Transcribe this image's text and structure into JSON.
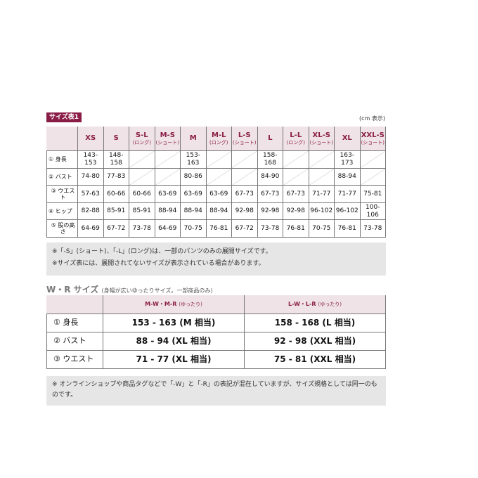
{
  "size_table_1": {
    "badge": "サイズ表1",
    "unit_note": "(cm 表示)",
    "columns": [
      {
        "main": "XS"
      },
      {
        "main": "S"
      },
      {
        "main": "S-L",
        "sub": "(ロング)"
      },
      {
        "main": "M-S",
        "sub": "(ショート)"
      },
      {
        "main": "M"
      },
      {
        "main": "M-L",
        "sub": "(ロング)"
      },
      {
        "main": "L-S",
        "sub": "(ショート)"
      },
      {
        "main": "L"
      },
      {
        "main": "L-L",
        "sub": "(ロング)"
      },
      {
        "main": "XL-S",
        "sub": "(ショート)"
      },
      {
        "main": "XL"
      },
      {
        "main": "XXL-S",
        "sub": "(ショート)"
      }
    ],
    "rows": [
      {
        "label": "① 身長",
        "cells": [
          "143-153",
          "148-158",
          null,
          null,
          "153-163",
          null,
          null,
          "158-168",
          null,
          null,
          "163-173",
          null
        ]
      },
      {
        "label": "② バスト",
        "cells": [
          "74-80",
          "77-83",
          null,
          null,
          "80-86",
          null,
          null,
          "84-90",
          null,
          null,
          "88-94",
          null
        ]
      },
      {
        "label": "③ ウエスト",
        "cells": [
          "57-63",
          "60-66",
          "60-66",
          "63-69",
          "63-69",
          "63-69",
          "67-73",
          "67-73",
          "67-73",
          "71-77",
          "71-77",
          "75-81"
        ]
      },
      {
        "label": "④ ヒップ",
        "cells": [
          "82-88",
          "85-91",
          "85-91",
          "88-94",
          "88-94",
          "88-94",
          "92-98",
          "92-98",
          "92-98",
          "96-102",
          "96-102",
          "100-106"
        ]
      },
      {
        "label": "⑤ 股の高さ",
        "cells": [
          "64-69",
          "67-72",
          "73-78",
          "64-69",
          "70-75",
          "76-81",
          "67-72",
          "73-78",
          "76-81",
          "70-75",
          "76-81",
          "73-78"
        ]
      }
    ],
    "notes": [
      "※「-S」(ショート)、「-L」(ロング)は、一部のパンツのみの展開サイズです。",
      "※サイズ表には、展開されてないサイズが表示されている場合があります。"
    ]
  },
  "wr_table": {
    "title": "W・R サイズ",
    "subtitle": "(身幅が広いゆったりサイズ。一部商品のみ)",
    "columns": [
      {
        "main": "M-W・M-R",
        "sub": "(ゆったり)"
      },
      {
        "main": "L-W・L-R",
        "sub": "(ゆったり)"
      }
    ],
    "rows": [
      {
        "label": "① 身長",
        "cells": [
          "153 - 163 (M 相当)",
          "158 - 168 (L 相当)"
        ]
      },
      {
        "label": "② バスト",
        "cells": [
          "88 - 94 (XL 相当)",
          "92 - 98 (XXL 相当)"
        ]
      },
      {
        "label": "③ ウエスト",
        "cells": [
          "71 - 77 (XL 相当)",
          "75 - 81 (XXL 相当)"
        ]
      }
    ],
    "note": "※ オンラインショップや商品タグなどで「-W」と「-R」の表記が混在していますが、サイズ規格としては同一のものです。"
  }
}
